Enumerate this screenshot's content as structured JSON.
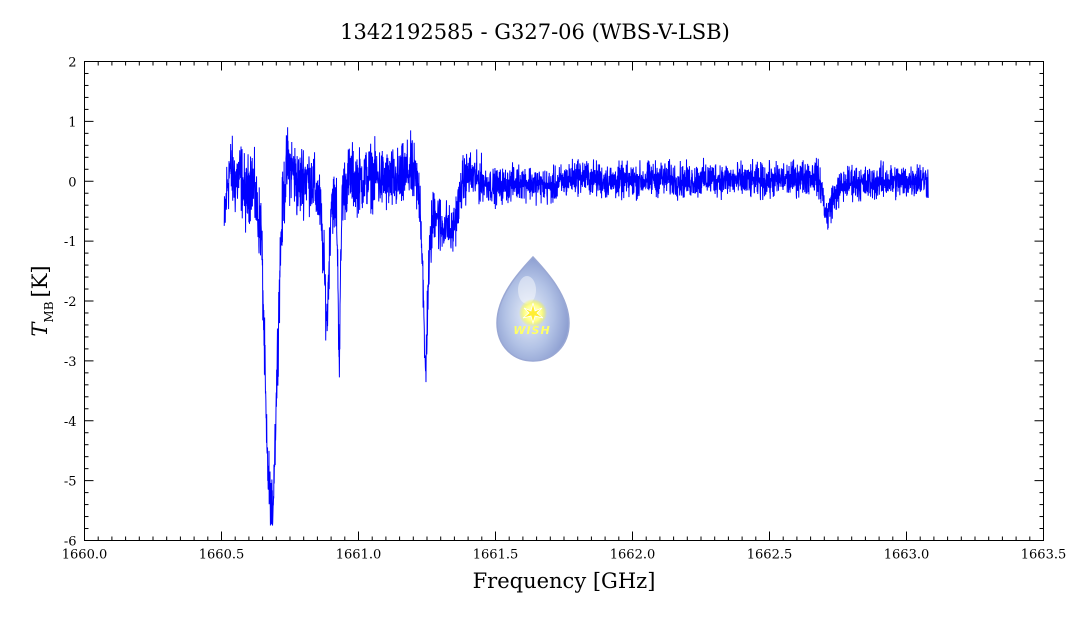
{
  "chart_data": {
    "type": "line",
    "title": "1342192585 - G327-06 (WBS-V-LSB)",
    "xlabel": "Frequency [GHz]",
    "ylabel_main": "T",
    "ylabel_sub": "MB",
    "ylabel_unit": "[K]",
    "xlim": [
      1660.0,
      1663.5
    ],
    "ylim": [
      -6,
      2
    ],
    "x_ticks": [
      1660.0,
      1660.5,
      1661.0,
      1661.5,
      1662.0,
      1662.5,
      1663.0,
      1663.5
    ],
    "x_tick_labels": [
      "1660.0",
      "1660.5",
      "1661.0",
      "1661.5",
      "1662.0",
      "1662.5",
      "1663.0",
      "1663.5"
    ],
    "y_ticks": [
      2,
      1,
      0,
      -1,
      -2,
      -3,
      -4,
      -5,
      -6
    ],
    "y_tick_labels": [
      "2",
      "1",
      "0",
      "-1",
      "-2",
      "-3",
      "-4",
      "-5",
      "-6"
    ],
    "grid": false,
    "line_color": "#0000ff",
    "logo_text": "WISH",
    "series": [
      {
        "values_x": [
          1660.51,
          1660.52,
          1660.53,
          1660.55,
          1660.57,
          1660.59,
          1660.61,
          1660.63,
          1660.645,
          1660.655,
          1660.665,
          1660.675,
          1660.685,
          1660.695,
          1660.705,
          1660.715,
          1660.725,
          1660.74,
          1660.76,
          1660.78,
          1660.8,
          1660.83,
          1660.86,
          1660.875,
          1660.885,
          1660.9,
          1660.92,
          1660.93,
          1660.94,
          1660.97,
          1661.0,
          1661.05,
          1661.1,
          1661.15,
          1661.19,
          1661.21,
          1661.225,
          1661.235,
          1661.24,
          1661.245,
          1661.255,
          1661.265,
          1661.28,
          1661.3,
          1661.32,
          1661.34,
          1661.36,
          1661.38,
          1661.4,
          1661.45,
          1661.5,
          1661.6,
          1661.7,
          1661.8,
          1661.9,
          1662.0,
          1662.1,
          1662.2,
          1662.3,
          1662.4,
          1662.5,
          1662.6,
          1662.67,
          1662.69,
          1662.7,
          1662.71,
          1662.73,
          1662.76,
          1662.8,
          1662.85,
          1662.9,
          1662.95,
          1663.0,
          1663.04,
          1663.08
        ],
        "values_y": [
          -0.8,
          -0.1,
          0.2,
          0.0,
          0.1,
          -0.3,
          0.1,
          -0.5,
          -0.8,
          -2.5,
          -4.5,
          -5.2,
          -5.7,
          -4.4,
          -2.8,
          -1.2,
          -0.3,
          0.3,
          0.2,
          -0.1,
          0.1,
          0.0,
          -0.4,
          -1.5,
          -2.4,
          -0.3,
          -0.4,
          -3.0,
          -0.2,
          0.1,
          0.0,
          0.1,
          0.0,
          0.0,
          0.2,
          0.0,
          -0.3,
          -1.5,
          -2.8,
          -3.2,
          -1.6,
          -0.9,
          -0.4,
          -0.8,
          -0.7,
          -0.9,
          -0.5,
          0.0,
          0.1,
          0.0,
          -0.1,
          0.0,
          -0.1,
          0.1,
          0.0,
          0.0,
          0.05,
          0.0,
          0.05,
          0.0,
          0.0,
          0.05,
          0.1,
          -0.1,
          -0.4,
          -0.6,
          -0.3,
          -0.1,
          0.0,
          -0.05,
          0.0,
          0.0,
          0.0,
          0.05,
          0.0
        ]
      }
    ]
  }
}
